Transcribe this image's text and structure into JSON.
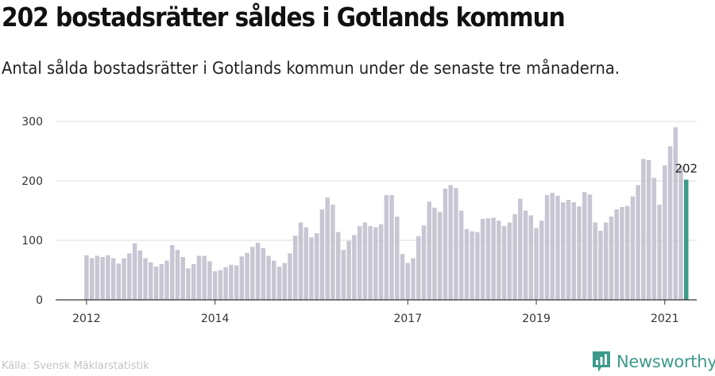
{
  "title": "202 bostadsrätter såldes i Gotlands kommun",
  "subtitle": "Antal sålda bostadsrätter i Gotlands kommun under de senaste tre månaderna.",
  "source": "Källa: Svensk Mäklarstatistik",
  "brand": {
    "name": "Newsworthy",
    "icon": "newsworthy-logo-icon"
  },
  "colors": {
    "bar": "#c8c6d3",
    "highlight": "#3e9a8a",
    "grid": "#dcdcdc",
    "axis": "#333333",
    "brand": "#3d9a8b"
  },
  "chart_data": {
    "type": "bar",
    "title": "202 bostadsrätter såldes i Gotlands kommun",
    "xlabel": "",
    "ylabel": "",
    "x_start": "2012-01",
    "x_step": "month",
    "ylim": [
      0,
      300
    ],
    "yticks": [
      0,
      100,
      200,
      300
    ],
    "xticks": [
      {
        "label": "2012",
        "month": "2012-01"
      },
      {
        "label": "2014",
        "month": "2014-01"
      },
      {
        "label": "2017",
        "month": "2017-01"
      },
      {
        "label": "2019",
        "month": "2019-01"
      },
      {
        "label": "2021",
        "month": "2021-01"
      }
    ],
    "grid": true,
    "values": [
      75,
      70,
      74,
      72,
      75,
      70,
      61,
      70,
      78,
      95,
      83,
      70,
      63,
      56,
      60,
      66,
      92,
      84,
      72,
      53,
      60,
      74,
      74,
      65,
      48,
      50,
      55,
      59,
      58,
      73,
      79,
      89,
      96,
      87,
      74,
      66,
      56,
      62,
      78,
      108,
      130,
      122,
      105,
      112,
      152,
      172,
      160,
      114,
      84,
      99,
      109,
      124,
      130,
      124,
      122,
      127,
      176,
      176,
      140,
      77,
      62,
      70,
      107,
      125,
      165,
      155,
      148,
      187,
      193,
      188,
      150,
      119,
      115,
      114,
      136,
      137,
      138,
      133,
      124,
      130,
      144,
      170,
      150,
      142,
      121,
      133,
      176,
      180,
      175,
      164,
      168,
      164,
      157,
      181,
      177,
      130,
      116,
      130,
      140,
      152,
      156,
      158,
      174,
      193,
      237,
      235,
      205,
      160,
      226,
      258,
      290,
      225,
      202
    ],
    "highlight_index": 112,
    "highlight_label": "202"
  }
}
